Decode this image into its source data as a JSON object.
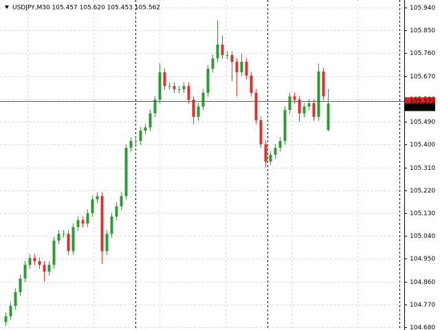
{
  "chart_data": {
    "type": "candlestick",
    "title": "USDJPY,M30  105.457 105.620 105.453 105.562",
    "up_color": "#2f9a35",
    "down_color": "#d8332c",
    "ylim": [
      104.669,
      105.97
    ],
    "yticks": [
      {
        "value": 105.94,
        "label": "105.940"
      },
      {
        "value": 105.85,
        "label": "105.850"
      },
      {
        "value": 105.76,
        "label": "105.760"
      },
      {
        "value": 105.67,
        "label": "105.670"
      },
      {
        "value": 105.58,
        "label": "105.580"
      },
      {
        "value": 105.49,
        "label": "105.490"
      },
      {
        "value": 105.4,
        "label": "105.400"
      },
      {
        "value": 105.31,
        "label": "105.310"
      },
      {
        "value": 105.22,
        "label": "105.220"
      },
      {
        "value": 105.13,
        "label": "105.130"
      },
      {
        "value": 105.04,
        "label": "105.040"
      },
      {
        "value": 104.95,
        "label": "104.950"
      },
      {
        "value": 104.86,
        "label": "104.860"
      },
      {
        "value": 104.77,
        "label": "104.770"
      },
      {
        "value": 104.68,
        "label": "104.680"
      }
    ],
    "grid": true,
    "price_line": {
      "value": 105.572,
      "label": "105.572",
      "color": "#e02020"
    },
    "bid": {
      "value": 105.562,
      "label": "105.562"
    },
    "open": [
      104.7,
      104.723,
      104.764,
      104.818,
      104.872,
      104.926,
      104.953,
      104.94,
      104.926,
      104.899,
      104.926,
      105.021,
      105.048,
      105.048,
      104.98,
      105.075,
      105.102,
      105.089,
      105.13,
      105.184,
      105.197,
      104.98,
      105.048,
      105.116,
      105.157,
      105.197,
      105.387,
      105.414,
      105.414,
      105.455,
      105.468,
      105.523,
      105.577,
      105.685,
      105.631,
      105.631,
      105.618,
      105.618,
      105.631,
      105.577,
      105.509,
      105.55,
      105.604,
      105.699,
      105.74,
      105.794,
      105.753,
      105.753,
      105.726,
      105.685,
      105.726,
      105.672,
      105.604,
      105.496,
      105.401,
      105.333,
      105.36,
      105.387,
      105.414,
      105.536,
      105.59,
      105.577,
      105.523,
      105.55,
      105.563,
      105.509,
      105.688,
      105.457
    ],
    "high": [
      104.738,
      104.779,
      104.833,
      104.887,
      104.941,
      104.968,
      104.968,
      104.955,
      104.941,
      104.941,
      105.036,
      105.063,
      105.063,
      105.063,
      105.09,
      105.117,
      105.117,
      105.145,
      105.199,
      105.212,
      105.212,
      105.063,
      105.131,
      105.172,
      105.212,
      105.402,
      105.429,
      105.429,
      105.47,
      105.483,
      105.538,
      105.592,
      105.72,
      105.7,
      105.646,
      105.646,
      105.633,
      105.646,
      105.646,
      105.592,
      105.565,
      105.619,
      105.714,
      105.755,
      105.89,
      105.83,
      105.768,
      105.768,
      105.741,
      105.76,
      105.741,
      105.687,
      105.619,
      105.511,
      105.416,
      105.375,
      105.402,
      105.429,
      105.551,
      105.605,
      105.605,
      105.592,
      105.565,
      105.578,
      105.578,
      105.72,
      105.703,
      105.62
    ],
    "low": [
      104.685,
      104.708,
      104.749,
      104.803,
      104.857,
      104.911,
      104.925,
      104.911,
      104.86,
      104.884,
      104.911,
      105.006,
      105.033,
      104.965,
      104.965,
      105.06,
      105.074,
      105.074,
      105.115,
      105.169,
      104.93,
      104.965,
      105.033,
      105.101,
      105.142,
      105.182,
      105.372,
      105.399,
      105.399,
      105.44,
      105.453,
      105.508,
      105.562,
      105.616,
      105.616,
      105.603,
      105.603,
      105.603,
      105.562,
      105.48,
      105.494,
      105.535,
      105.589,
      105.684,
      105.725,
      105.738,
      105.738,
      105.65,
      105.59,
      105.67,
      105.657,
      105.589,
      105.481,
      105.386,
      105.31,
      105.318,
      105.345,
      105.372,
      105.399,
      105.521,
      105.562,
      105.49,
      105.508,
      105.535,
      105.494,
      105.494,
      105.575,
      105.453
    ],
    "close": [
      104.723,
      104.764,
      104.818,
      104.872,
      104.926,
      104.953,
      104.94,
      104.926,
      104.899,
      104.926,
      105.021,
      105.048,
      105.048,
      104.98,
      105.075,
      105.102,
      105.089,
      105.13,
      105.184,
      105.197,
      104.98,
      105.048,
      105.116,
      105.157,
      105.197,
      105.387,
      105.414,
      105.414,
      105.455,
      105.468,
      105.523,
      105.577,
      105.685,
      105.631,
      105.631,
      105.618,
      105.618,
      105.631,
      105.577,
      105.509,
      105.55,
      105.604,
      105.699,
      105.74,
      105.794,
      105.753,
      105.753,
      105.726,
      105.685,
      105.726,
      105.672,
      105.604,
      105.496,
      105.401,
      105.333,
      105.36,
      105.387,
      105.414,
      105.536,
      105.59,
      105.577,
      105.523,
      105.55,
      105.563,
      105.509,
      105.688,
      105.59,
      105.562
    ]
  }
}
